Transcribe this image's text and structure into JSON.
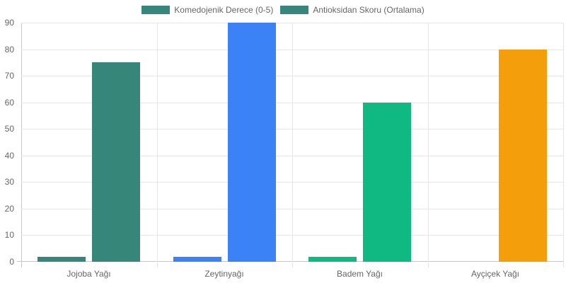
{
  "chart_data": {
    "type": "bar",
    "title": "",
    "xlabel": "",
    "ylabel": "",
    "ylim": [
      0,
      90
    ],
    "yticks": [
      0,
      10,
      20,
      30,
      40,
      50,
      60,
      70,
      80,
      90
    ],
    "categories": [
      "Jojoba Yağı",
      "Zeytinyağı",
      "Badem Yağı",
      "Ayçiçek Yağı"
    ],
    "series": [
      {
        "name": "Komedojenik Derece (0-5)",
        "values": [
          2,
          2,
          2,
          0
        ]
      },
      {
        "name": "Antioksidan Skoru (Ortalama)",
        "values": [
          75,
          90,
          60,
          80
        ]
      }
    ],
    "bar_colors": [
      "#36877a",
      "#3b82f6",
      "#10b981",
      "#f59e0b"
    ],
    "legend_colors": [
      "#36877a",
      "#36877a"
    ],
    "legend_position": "top",
    "grid": true
  }
}
